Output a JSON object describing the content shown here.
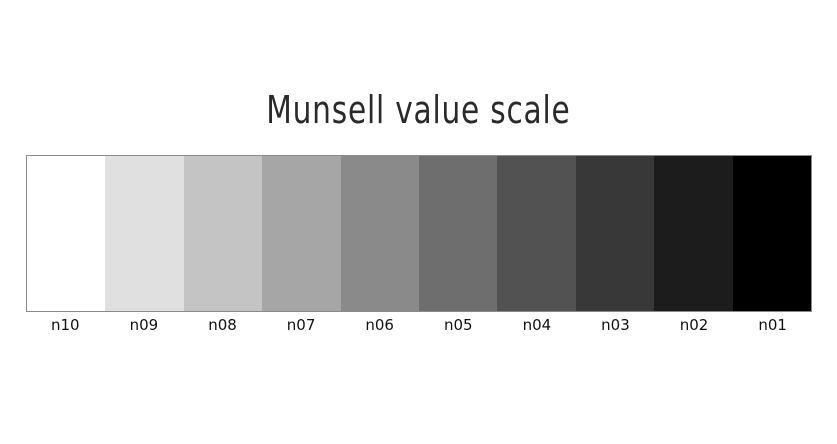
{
  "title": "Munsell value scale",
  "swatches": [
    {
      "label": "n10",
      "color": "#ffffff"
    },
    {
      "label": "n09",
      "color": "#e0e0e0"
    },
    {
      "label": "n08",
      "color": "#c4c4c4"
    },
    {
      "label": "n07",
      "color": "#a6a6a6"
    },
    {
      "label": "n06",
      "color": "#8a8a8a"
    },
    {
      "label": "n05",
      "color": "#6e6e6e"
    },
    {
      "label": "n04",
      "color": "#525252"
    },
    {
      "label": "n03",
      "color": "#383838"
    },
    {
      "label": "n02",
      "color": "#1c1c1c"
    },
    {
      "label": "n01",
      "color": "#000000"
    }
  ]
}
